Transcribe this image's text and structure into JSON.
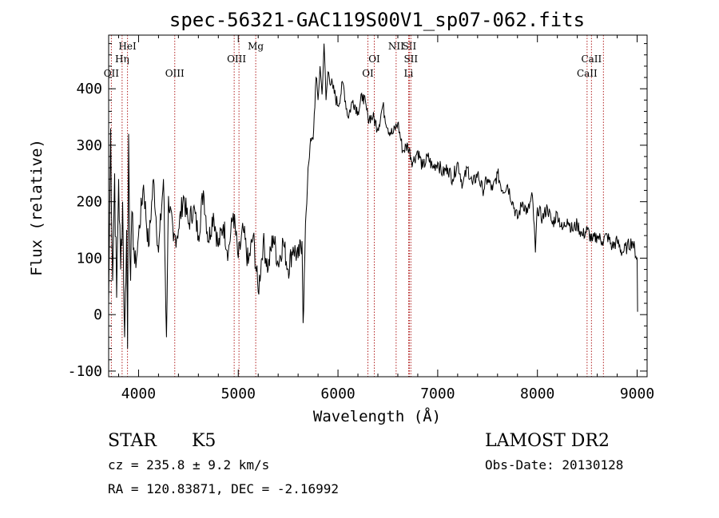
{
  "chart_data": {
    "type": "line",
    "title": "spec-56321-GAC119S00V1_sp07-062.fits",
    "xlabel": "Wavelength (Å)",
    "ylabel": "Flux (relative)",
    "xlim": [
      3700,
      9100
    ],
    "ylim": [
      -110,
      495
    ],
    "x_ticks": [
      4000,
      5000,
      6000,
      7000,
      8000,
      9000
    ],
    "y_ticks": [
      -100,
      0,
      100,
      200,
      300,
      400
    ],
    "grid": false,
    "series": [
      {
        "color": "#000000",
        "points": [
          [
            3700,
            20
          ],
          [
            3720,
            330
          ],
          [
            3740,
            60
          ],
          [
            3760,
            250
          ],
          [
            3780,
            30
          ],
          [
            3800,
            240
          ],
          [
            3820,
            80
          ],
          [
            3840,
            200
          ],
          [
            3860,
            -40
          ],
          [
            3880,
            150
          ],
          [
            3890,
            -60
          ],
          [
            3900,
            320
          ],
          [
            3920,
            60
          ],
          [
            3940,
            180
          ],
          [
            3960,
            90
          ],
          [
            3980,
            100
          ],
          [
            4000,
            140
          ],
          [
            4050,
            230
          ],
          [
            4100,
            120
          ],
          [
            4150,
            240
          ],
          [
            4200,
            110
          ],
          [
            4250,
            240
          ],
          [
            4280,
            -40
          ],
          [
            4300,
            210
          ],
          [
            4350,
            130
          ],
          [
            4400,
            150
          ],
          [
            4450,
            210
          ],
          [
            4500,
            160
          ],
          [
            4550,
            190
          ],
          [
            4600,
            140
          ],
          [
            4650,
            220
          ],
          [
            4700,
            130
          ],
          [
            4750,
            180
          ],
          [
            4800,
            120
          ],
          [
            4850,
            160
          ],
          [
            4900,
            110
          ],
          [
            4950,
            180
          ],
          [
            5000,
            100
          ],
          [
            5050,
            150
          ],
          [
            5100,
            90
          ],
          [
            5150,
            140
          ],
          [
            5200,
            40
          ],
          [
            5250,
            130
          ],
          [
            5300,
            80
          ],
          [
            5350,
            140
          ],
          [
            5400,
            90
          ],
          [
            5450,
            130
          ],
          [
            5500,
            80
          ],
          [
            5550,
            120
          ],
          [
            5600,
            100
          ],
          [
            5640,
            130
          ],
          [
            5650,
            -15
          ],
          [
            5680,
            180
          ],
          [
            5700,
            260
          ],
          [
            5720,
            300
          ],
          [
            5750,
            310
          ],
          [
            5780,
            420
          ],
          [
            5800,
            380
          ],
          [
            5820,
            440
          ],
          [
            5840,
            390
          ],
          [
            5860,
            480
          ],
          [
            5880,
            380
          ],
          [
            5900,
            430
          ],
          [
            5950,
            400
          ],
          [
            6000,
            370
          ],
          [
            6050,
            410
          ],
          [
            6100,
            350
          ],
          [
            6150,
            380
          ],
          [
            6200,
            360
          ],
          [
            6250,
            390
          ],
          [
            6300,
            350
          ],
          [
            6350,
            350
          ],
          [
            6400,
            330
          ],
          [
            6450,
            370
          ],
          [
            6500,
            330
          ],
          [
            6550,
            320
          ],
          [
            6600,
            340
          ],
          [
            6650,
            290
          ],
          [
            6700,
            300
          ],
          [
            6750,
            270
          ],
          [
            6800,
            290
          ],
          [
            6850,
            260
          ],
          [
            6900,
            280
          ],
          [
            6950,
            260
          ],
          [
            7000,
            270
          ],
          [
            7050,
            250
          ],
          [
            7100,
            260
          ],
          [
            7150,
            240
          ],
          [
            7200,
            270
          ],
          [
            7250,
            230
          ],
          [
            7300,
            260
          ],
          [
            7350,
            230
          ],
          [
            7400,
            250
          ],
          [
            7450,
            220
          ],
          [
            7500,
            240
          ],
          [
            7550,
            220
          ],
          [
            7600,
            250
          ],
          [
            7650,
            220
          ],
          [
            7700,
            230
          ],
          [
            7750,
            200
          ],
          [
            7800,
            170
          ],
          [
            7850,
            200
          ],
          [
            7900,
            180
          ],
          [
            7950,
            210
          ],
          [
            7980,
            110
          ],
          [
            8000,
            190
          ],
          [
            8050,
            170
          ],
          [
            8100,
            190
          ],
          [
            8150,
            160
          ],
          [
            8200,
            180
          ],
          [
            8250,
            150
          ],
          [
            8300,
            170
          ],
          [
            8350,
            150
          ],
          [
            8400,
            160
          ],
          [
            8450,
            140
          ],
          [
            8500,
            150
          ],
          [
            8550,
            130
          ],
          [
            8600,
            140
          ],
          [
            8650,
            130
          ],
          [
            8700,
            140
          ],
          [
            8750,
            120
          ],
          [
            8800,
            130
          ],
          [
            8850,
            110
          ],
          [
            8900,
            120
          ],
          [
            8950,
            130
          ],
          [
            9000,
            100
          ],
          [
            9005,
            5
          ]
        ]
      }
    ],
    "line_groups": [
      {
        "labels": [
          "OII"
        ],
        "x": [
          3727
        ],
        "row": 3
      },
      {
        "labels": [
          "Hη"
        ],
        "x": [
          3835
        ],
        "row": 2
      },
      {
        "labels": [
          "HeI"
        ],
        "x": [
          3889
        ],
        "row": 1
      },
      {
        "labels": [
          "OIII"
        ],
        "x": [
          4363
        ],
        "row": 3
      },
      {
        "labels": [
          "OIII"
        ],
        "x": [
          4959,
          5007
        ],
        "row": 2
      },
      {
        "labels": [
          "Mg"
        ],
        "x": [
          5175
        ],
        "row": 1
      },
      {
        "labels": [
          "OI"
        ],
        "x": [
          6300
        ],
        "row": 3
      },
      {
        "labels": [
          "OI"
        ],
        "x": [
          6364
        ],
        "row": 2
      },
      {
        "labels": [
          "NII"
        ],
        "x": [
          6583
        ],
        "row": 1
      },
      {
        "labels": [
          "SII"
        ],
        "x": [
          6716
        ],
        "row": 1
      },
      {
        "labels": [
          "SII"
        ],
        "x": [
          6731
        ],
        "row": 2
      },
      {
        "labels": [
          "Li"
        ],
        "x": [
          6708
        ],
        "row": 3
      },
      {
        "labels": [
          "CaII"
        ],
        "x": [
          8542
        ],
        "row": 2
      },
      {
        "labels": [
          "CaII"
        ],
        "x": [
          8498
        ],
        "row": 3
      },
      {
        "labels": [],
        "x": [
          8662
        ],
        "row": 0
      }
    ]
  },
  "info": {
    "class": "STAR",
    "subclass": "K5",
    "survey": "LAMOST DR2",
    "cz": "cz = 235.8 ± 9.2 km/s",
    "obs_date": "Obs-Date: 20130128",
    "coords": "RA = 120.83871, DEC =  -2.16992"
  }
}
